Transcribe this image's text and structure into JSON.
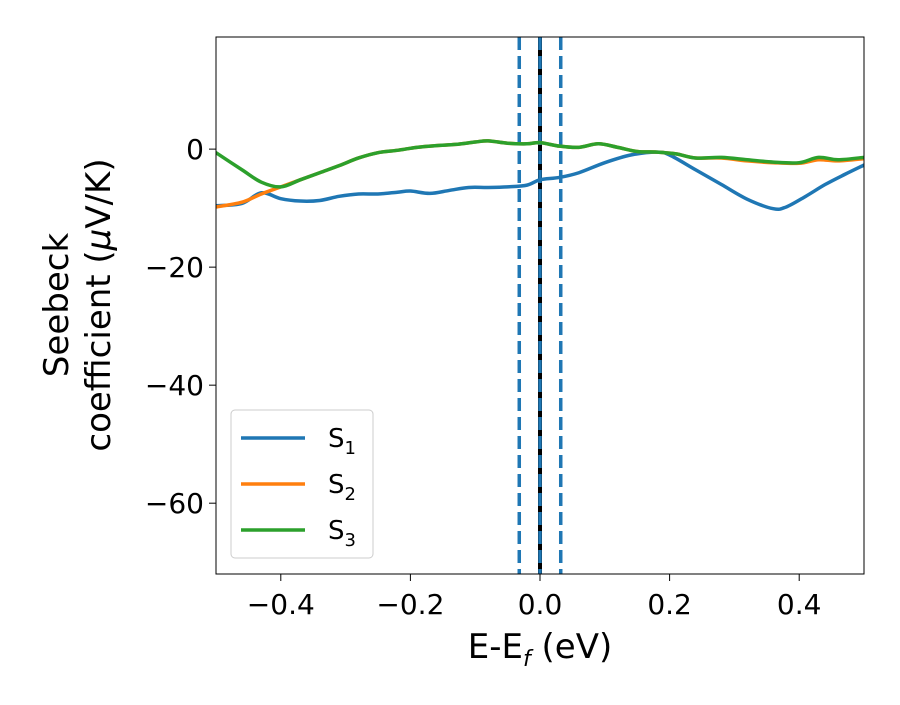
{
  "chart_data": {
    "type": "line",
    "title": "",
    "xlabel_main": "E-E",
    "xlabel_sub": "f",
    "xlabel_unit": " (eV)",
    "ylabel_line1": "Seebeck",
    "ylabel_line2_pre": "coefficient  (",
    "ylabel_mu": "μ",
    "ylabel_line2_post": "V/K)",
    "xlim": [
      -0.5,
      0.5
    ],
    "ylim": [
      -72,
      19
    ],
    "xticks": [
      -0.4,
      -0.2,
      0.0,
      0.2,
      0.4
    ],
    "xtick_labels": [
      "−0.4",
      "−0.2",
      "0.0",
      "0.2",
      "0.4"
    ],
    "yticks": [
      0,
      -20,
      -40,
      -60
    ],
    "ytick_labels": [
      "0",
      "−20",
      "−40",
      "−60"
    ],
    "grid": false,
    "legend_position": "lower-left",
    "vertical_lines": [
      {
        "x": -0.032,
        "style": "dashed",
        "color": "#1f77b4"
      },
      {
        "x": 0.0,
        "style": "solid",
        "color": "#000000"
      },
      {
        "x": 0.0,
        "style": "dashed",
        "color": "#1f77b4"
      },
      {
        "x": 0.032,
        "style": "dashed",
        "color": "#1f77b4"
      }
    ],
    "series": [
      {
        "name": "S",
        "sub": "1",
        "color": "#1f77b4",
        "x": [
          -0.5,
          -0.46,
          -0.43,
          -0.4,
          -0.37,
          -0.34,
          -0.31,
          -0.28,
          -0.25,
          -0.22,
          -0.2,
          -0.17,
          -0.14,
          -0.11,
          -0.08,
          -0.05,
          -0.02,
          0.0,
          0.03,
          0.06,
          0.1,
          0.14,
          0.18,
          0.2,
          0.24,
          0.28,
          0.32,
          0.36,
          0.38,
          0.41,
          0.44,
          0.47,
          0.5
        ],
        "y": [
          -9.6,
          -9.2,
          -7.4,
          -8.4,
          -8.8,
          -8.7,
          -8.0,
          -7.6,
          -7.6,
          -7.3,
          -7.1,
          -7.5,
          -7.0,
          -6.5,
          -6.5,
          -6.4,
          -6.1,
          -5.2,
          -4.8,
          -4.0,
          -2.3,
          -1.0,
          -0.5,
          -1.0,
          -3.5,
          -6.0,
          -8.5,
          -10.1,
          -9.8,
          -8.0,
          -6.0,
          -4.3,
          -2.7
        ]
      },
      {
        "name": "S",
        "sub": "2",
        "color": "#ff7f0e",
        "x": [
          -0.5,
          -0.46,
          -0.43,
          -0.4,
          -0.37,
          -0.34,
          -0.31,
          -0.28,
          -0.25,
          -0.22,
          -0.19,
          -0.16,
          -0.13,
          -0.1,
          -0.08,
          -0.05,
          -0.02,
          0.0,
          0.03,
          0.06,
          0.09,
          0.12,
          0.15,
          0.18,
          0.21,
          0.24,
          0.28,
          0.32,
          0.36,
          0.4,
          0.43,
          0.46,
          0.5
        ],
        "y": [
          -9.8,
          -9.0,
          -7.6,
          -6.4,
          -5.2,
          -4.0,
          -2.8,
          -1.5,
          -0.6,
          -0.2,
          0.3,
          0.6,
          0.8,
          1.2,
          1.4,
          1.0,
          0.9,
          1.1,
          0.5,
          0.3,
          0.9,
          0.3,
          -0.4,
          -0.5,
          -0.8,
          -1.5,
          -1.5,
          -2.0,
          -2.3,
          -2.4,
          -1.8,
          -2.0,
          -1.6
        ]
      },
      {
        "name": "S",
        "sub": "3",
        "color": "#2ca02c",
        "x": [
          -0.5,
          -0.46,
          -0.43,
          -0.4,
          -0.37,
          -0.34,
          -0.31,
          -0.28,
          -0.25,
          -0.22,
          -0.19,
          -0.16,
          -0.13,
          -0.1,
          -0.08,
          -0.05,
          -0.02,
          0.0,
          0.03,
          0.06,
          0.09,
          0.12,
          0.15,
          0.18,
          0.21,
          0.24,
          0.28,
          0.32,
          0.36,
          0.4,
          0.43,
          0.46,
          0.5
        ],
        "y": [
          -0.6,
          -3.5,
          -5.6,
          -6.4,
          -5.2,
          -4.0,
          -2.8,
          -1.5,
          -0.6,
          -0.2,
          0.3,
          0.6,
          0.8,
          1.2,
          1.4,
          1.0,
          0.9,
          1.1,
          0.5,
          0.3,
          0.9,
          0.3,
          -0.4,
          -0.5,
          -0.8,
          -1.5,
          -1.4,
          -1.8,
          -2.2,
          -2.3,
          -1.4,
          -1.8,
          -1.4
        ]
      }
    ],
    "axis_color": "#000000",
    "background": "#ffffff"
  }
}
